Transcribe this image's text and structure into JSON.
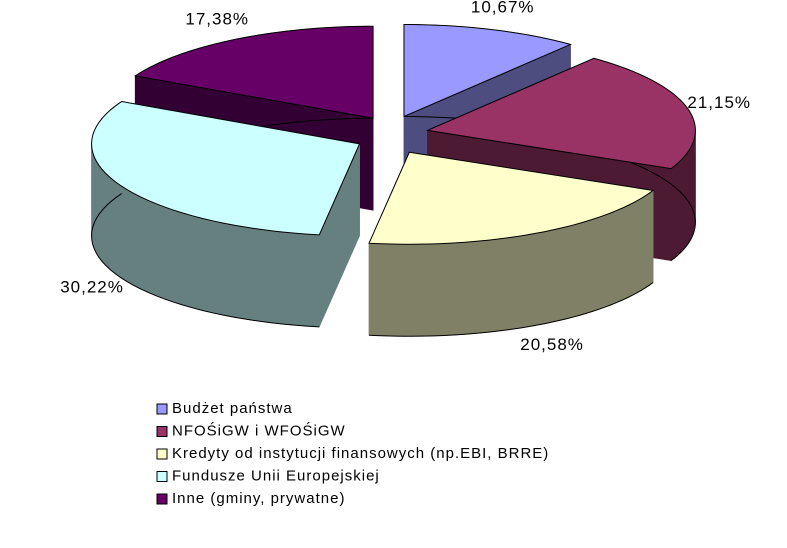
{
  "chart_data": {
    "type": "pie3d",
    "categories": [
      "Budżet państwa",
      "NFOŚiGW i WFOŚiGW",
      "Kredyty od instytucji finansowych (np.EBI, BRRE)",
      "Fundusze Unii Europejskiej",
      "Inne (gminy, prywatne)"
    ],
    "values": [
      10.67,
      21.15,
      20.58,
      30.22,
      17.38
    ],
    "value_labels": [
      "10,67%",
      "21,15%",
      "20,58%",
      "30,22%",
      "17,38%"
    ],
    "colors": [
      "#9999ff",
      "#993366",
      "#ffffcc",
      "#ccffff",
      "#660066"
    ],
    "legend": "bottom"
  }
}
